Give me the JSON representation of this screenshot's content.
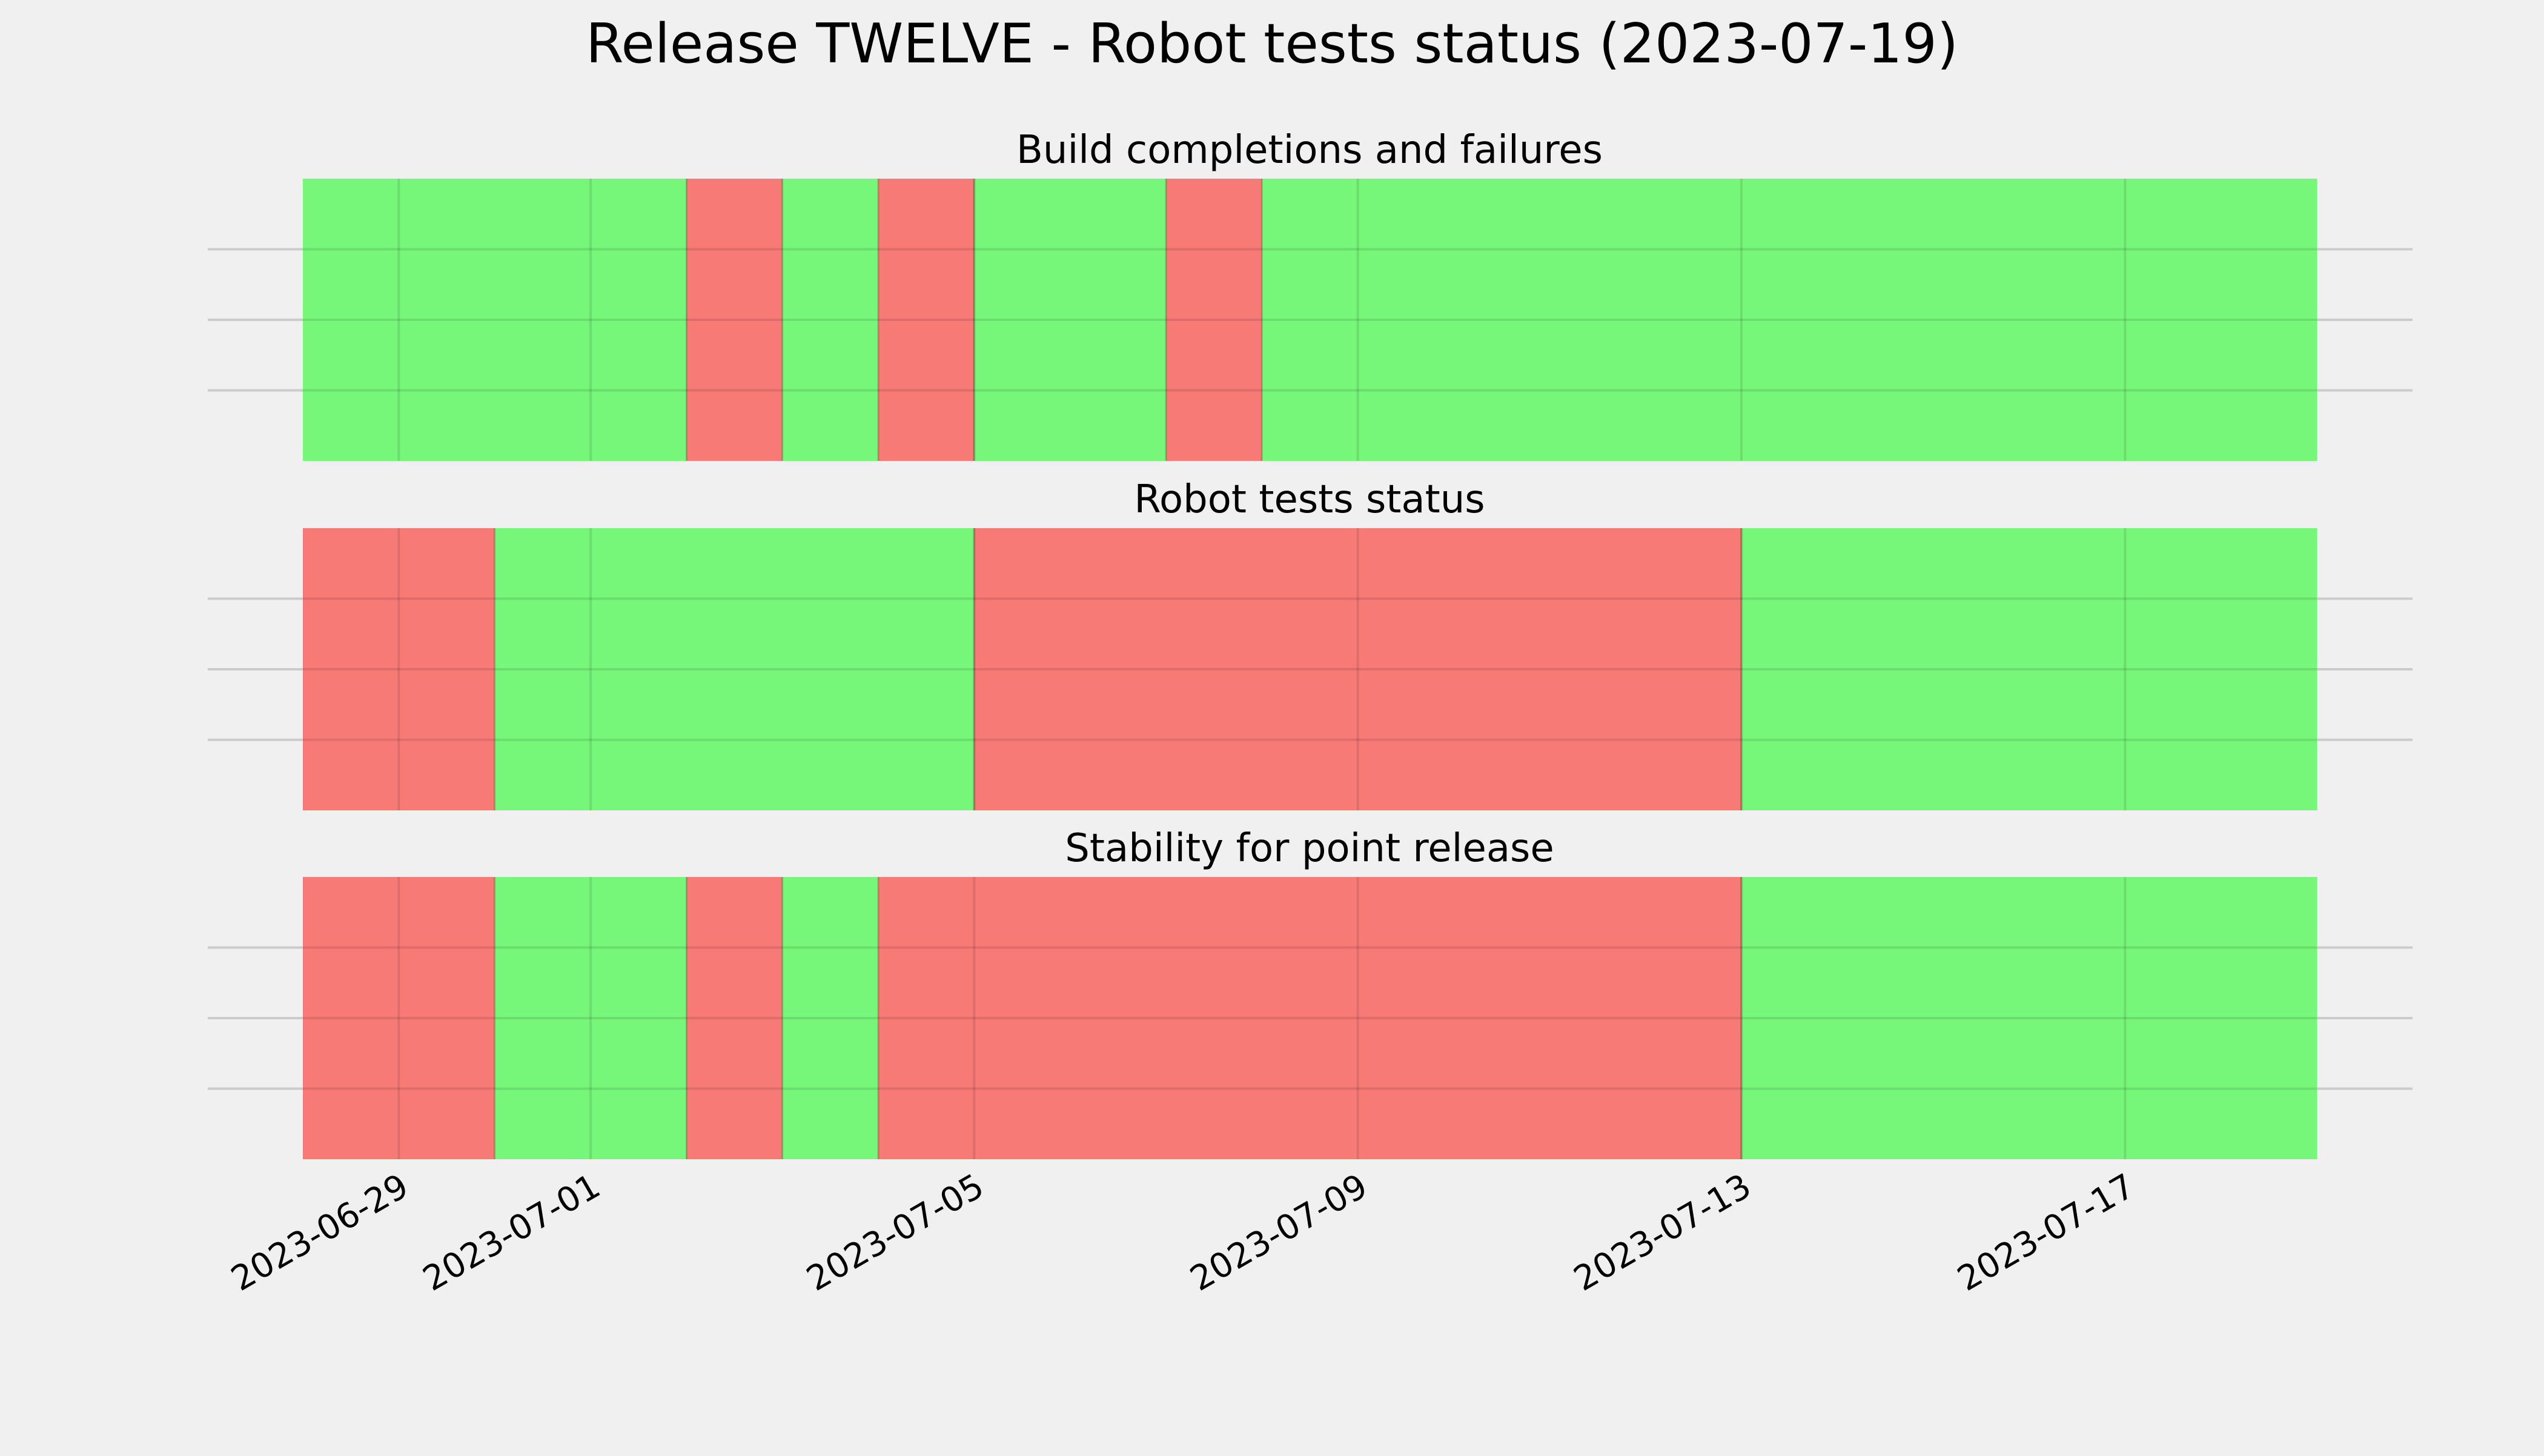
{
  "chart_data": {
    "type": "timeline",
    "title": "Release TWELVE - Robot tests status (2023-07-19)",
    "x_range": [
      "2023-06-28",
      "2023-07-19"
    ],
    "x_ticks": [
      "2023-06-29",
      "2023-07-01",
      "2023-07-05",
      "2023-07-09",
      "2023-07-13",
      "2023-07-17"
    ],
    "grid": true,
    "colors": {
      "pass": "#77f77a",
      "fail": "#f77a77"
    },
    "panels": [
      {
        "title": "Build completions and failures",
        "days": [
          {
            "date": "2023-06-28",
            "status": "pass"
          },
          {
            "date": "2023-06-29",
            "status": "pass"
          },
          {
            "date": "2023-06-30",
            "status": "pass"
          },
          {
            "date": "2023-07-01",
            "status": "pass"
          },
          {
            "date": "2023-07-02",
            "status": "fail"
          },
          {
            "date": "2023-07-03",
            "status": "pass"
          },
          {
            "date": "2023-07-04",
            "status": "fail"
          },
          {
            "date": "2023-07-05",
            "status": "pass"
          },
          {
            "date": "2023-07-06",
            "status": "pass"
          },
          {
            "date": "2023-07-07",
            "status": "fail"
          },
          {
            "date": "2023-07-08",
            "status": "pass"
          },
          {
            "date": "2023-07-09",
            "status": "pass"
          },
          {
            "date": "2023-07-10",
            "status": "pass"
          },
          {
            "date": "2023-07-11",
            "status": "pass"
          },
          {
            "date": "2023-07-12",
            "status": "pass"
          },
          {
            "date": "2023-07-13",
            "status": "pass"
          },
          {
            "date": "2023-07-14",
            "status": "pass"
          },
          {
            "date": "2023-07-15",
            "status": "pass"
          },
          {
            "date": "2023-07-16",
            "status": "pass"
          },
          {
            "date": "2023-07-17",
            "status": "pass"
          },
          {
            "date": "2023-07-18",
            "status": "pass"
          }
        ]
      },
      {
        "title": "Robot tests status",
        "days": [
          {
            "date": "2023-06-28",
            "status": "fail"
          },
          {
            "date": "2023-06-29",
            "status": "fail"
          },
          {
            "date": "2023-06-30",
            "status": "pass"
          },
          {
            "date": "2023-07-01",
            "status": "pass"
          },
          {
            "date": "2023-07-02",
            "status": "pass"
          },
          {
            "date": "2023-07-03",
            "status": "pass"
          },
          {
            "date": "2023-07-04",
            "status": "pass"
          },
          {
            "date": "2023-07-05",
            "status": "fail"
          },
          {
            "date": "2023-07-06",
            "status": "fail"
          },
          {
            "date": "2023-07-07",
            "status": "fail"
          },
          {
            "date": "2023-07-08",
            "status": "fail"
          },
          {
            "date": "2023-07-09",
            "status": "fail"
          },
          {
            "date": "2023-07-10",
            "status": "fail"
          },
          {
            "date": "2023-07-11",
            "status": "fail"
          },
          {
            "date": "2023-07-12",
            "status": "fail"
          },
          {
            "date": "2023-07-13",
            "status": "pass"
          },
          {
            "date": "2023-07-14",
            "status": "pass"
          },
          {
            "date": "2023-07-15",
            "status": "pass"
          },
          {
            "date": "2023-07-16",
            "status": "pass"
          },
          {
            "date": "2023-07-17",
            "status": "pass"
          },
          {
            "date": "2023-07-18",
            "status": "pass"
          }
        ]
      },
      {
        "title": "Stability for point release",
        "days": [
          {
            "date": "2023-06-28",
            "status": "fail"
          },
          {
            "date": "2023-06-29",
            "status": "fail"
          },
          {
            "date": "2023-06-30",
            "status": "pass"
          },
          {
            "date": "2023-07-01",
            "status": "pass"
          },
          {
            "date": "2023-07-02",
            "status": "fail"
          },
          {
            "date": "2023-07-03",
            "status": "pass"
          },
          {
            "date": "2023-07-04",
            "status": "fail"
          },
          {
            "date": "2023-07-05",
            "status": "fail"
          },
          {
            "date": "2023-07-06",
            "status": "fail"
          },
          {
            "date": "2023-07-07",
            "status": "fail"
          },
          {
            "date": "2023-07-08",
            "status": "fail"
          },
          {
            "date": "2023-07-09",
            "status": "fail"
          },
          {
            "date": "2023-07-10",
            "status": "fail"
          },
          {
            "date": "2023-07-11",
            "status": "fail"
          },
          {
            "date": "2023-07-12",
            "status": "fail"
          },
          {
            "date": "2023-07-13",
            "status": "pass"
          },
          {
            "date": "2023-07-14",
            "status": "pass"
          },
          {
            "date": "2023-07-15",
            "status": "pass"
          },
          {
            "date": "2023-07-16",
            "status": "pass"
          },
          {
            "date": "2023-07-17",
            "status": "pass"
          },
          {
            "date": "2023-07-18",
            "status": "pass"
          }
        ]
      }
    ]
  }
}
